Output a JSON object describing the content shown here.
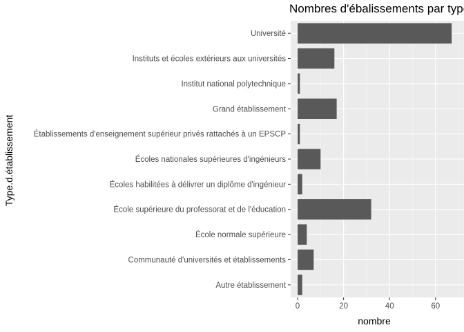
{
  "chart_data": {
    "type": "bar",
    "orientation": "horizontal",
    "title": "Nombres d'ébalissements par type",
    "xlabel": "nombre",
    "ylabel": "Type.d.établissement",
    "xlim": [
      0,
      70
    ],
    "x_ticks": [
      0,
      20,
      40,
      60
    ],
    "grid": true,
    "categories": [
      "Autre établissement",
      "Communauté d'universités et établissements",
      "École normale supérieure",
      "École supérieure du professorat et de l'éducation",
      "Écoles habilitées à délivrer un diplôme d'ingénieur",
      "Écoles nationales supérieures d'ingénieurs",
      "Établissements d'enseignement supérieur privés rattachés à un EPSCP",
      "Grand établissement",
      "Institut national polytechnique",
      "Instituts et écoles extérieurs aux universités",
      "Université"
    ],
    "values": [
      2,
      7,
      4,
      32,
      2,
      10,
      1,
      17,
      1,
      16,
      67
    ],
    "bar_color": "#595959",
    "panel_color": "#ebebeb"
  }
}
